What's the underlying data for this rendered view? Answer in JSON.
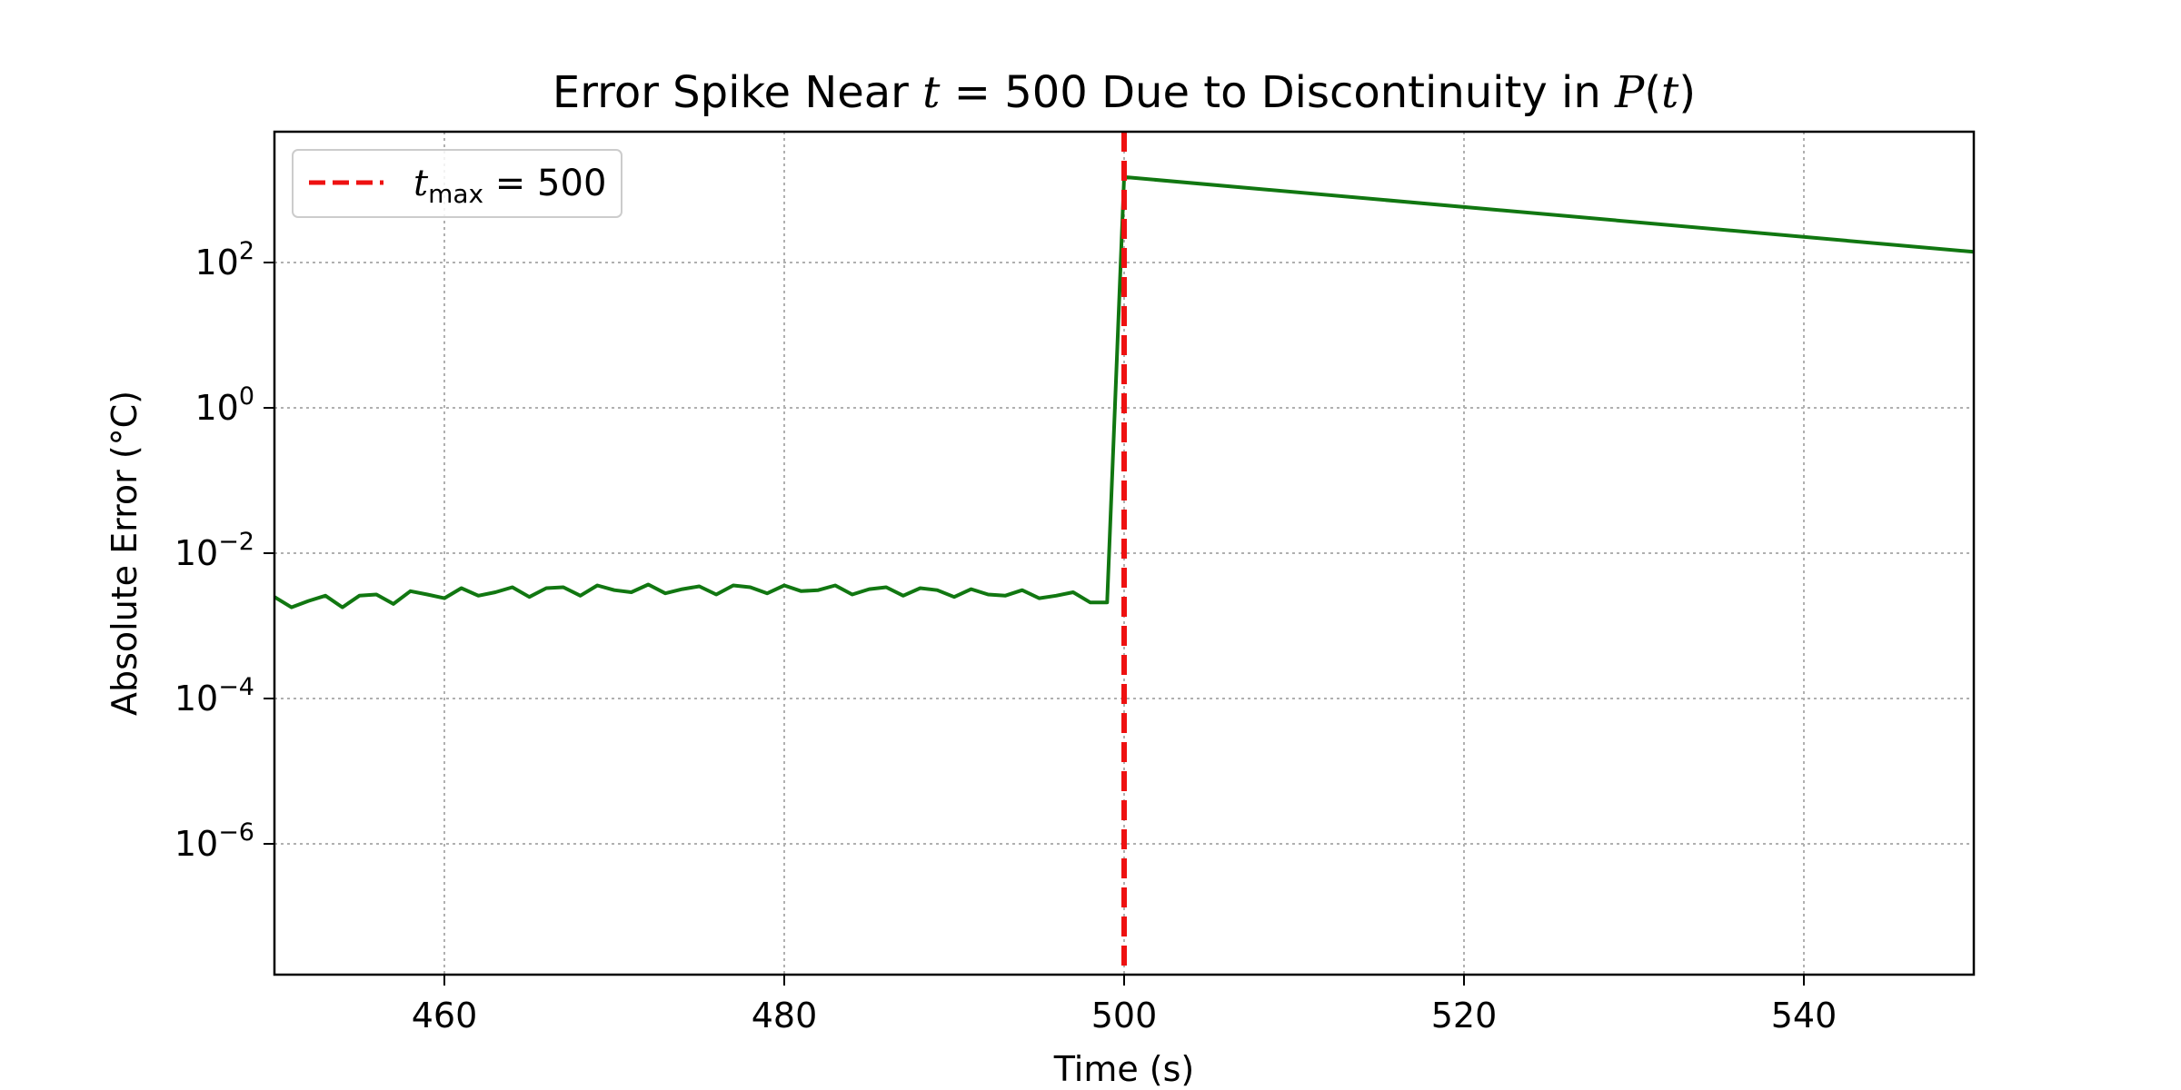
{
  "chart_data": {
    "type": "line",
    "title": {
      "prefix": "Error Spike Near ",
      "var": "t",
      "equals": " = 500 Due to Discontinuity in ",
      "func": "P",
      "open": "(",
      "arg": "t",
      "close": ")"
    },
    "xlabel": "Time (s)",
    "ylabel": "Absolute Error (°C)",
    "xlim": [
      450,
      550
    ],
    "ylim_log10": [
      -7.8,
      3.8
    ],
    "yscale": "log",
    "grid": true,
    "xticks": [
      460,
      480,
      500,
      520,
      540
    ],
    "yticks": [
      {
        "base": "10",
        "exp": "2",
        "log10": 2
      },
      {
        "base": "10",
        "exp": "0",
        "log10": 0
      },
      {
        "base": "10",
        "exp": "−2",
        "log10": -2
      },
      {
        "base": "10",
        "exp": "−4",
        "log10": -4
      },
      {
        "base": "10",
        "exp": "−6",
        "log10": -6
      }
    ],
    "legend": {
      "placement": "top-left",
      "entry": {
        "var": "t",
        "sub": "max",
        "value": " = 500"
      }
    },
    "vline": {
      "x": 500,
      "color": "#ee1111",
      "style": "dashed"
    },
    "series": [
      {
        "color": "#117711",
        "x": [
          450,
          451,
          452,
          453,
          454,
          455,
          456,
          457,
          458,
          459,
          460,
          461,
          462,
          463,
          464,
          465,
          466,
          467,
          468,
          469,
          470,
          471,
          472,
          473,
          474,
          475,
          476,
          477,
          478,
          479,
          480,
          481,
          482,
          483,
          484,
          485,
          486,
          487,
          488,
          489,
          490,
          491,
          492,
          493,
          494,
          495,
          496,
          497,
          498,
          499,
          500,
          550
        ],
        "y": [
          0.0025,
          0.0018,
          0.0022,
          0.0026,
          0.0018,
          0.0026,
          0.0027,
          0.002,
          0.003,
          0.0027,
          0.0024,
          0.0033,
          0.0026,
          0.0029,
          0.0034,
          0.0025,
          0.0033,
          0.0034,
          0.0026,
          0.0036,
          0.0031,
          0.0029,
          0.0037,
          0.0028,
          0.0032,
          0.0035,
          0.0027,
          0.0036,
          0.0034,
          0.0028,
          0.0036,
          0.003,
          0.0031,
          0.0036,
          0.0027,
          0.0032,
          0.0034,
          0.0026,
          0.0033,
          0.0031,
          0.0025,
          0.0032,
          0.0027,
          0.0026,
          0.0031,
          0.0024,
          0.0026,
          0.0029,
          0.0021,
          0.0021,
          1500,
          140
        ]
      }
    ]
  }
}
